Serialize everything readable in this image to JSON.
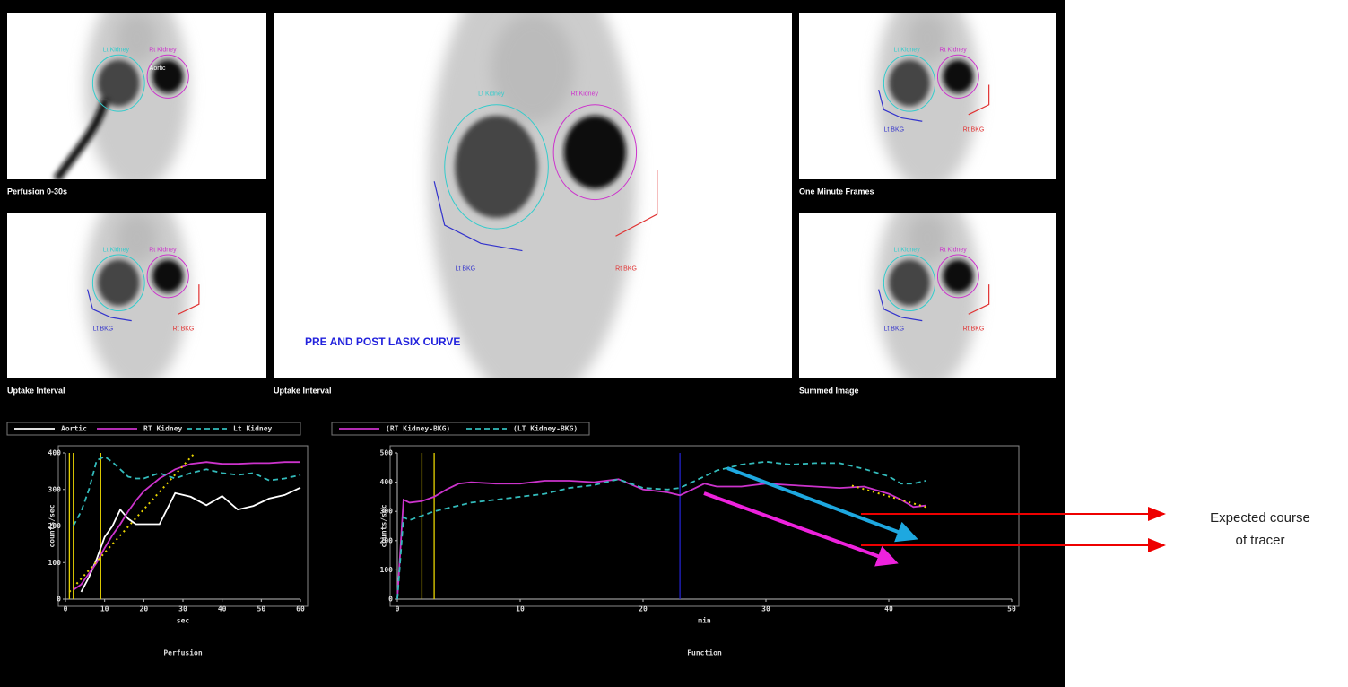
{
  "panels": [
    {
      "caption": "Perfusion 0-30s",
      "labels": [
        "Lt Kidney",
        "Rt Kidney",
        "Aortic"
      ]
    },
    {
      "caption": "Uptake Interval",
      "labels": [
        "Lt Kidney",
        "Rt Kidney",
        "Lt BKG",
        "Rt BKG"
      ],
      "overlay": "PRE AND POST LASIX CURVE"
    },
    {
      "caption": "One Minute Frames",
      "labels": [
        "Lt Kidney",
        "Rt Kidney",
        "Lt BKG",
        "Rt BKG"
      ]
    },
    {
      "caption": "Uptake Interval",
      "labels": [
        "Lt Kidney",
        "Rt Kidney",
        "Lt BKG",
        "Rt BKG"
      ]
    },
    {
      "caption": "Summed Image",
      "labels": [
        "Lt Kidney",
        "Rt Kidney",
        "Lt BKG",
        "Rt BKG"
      ]
    }
  ],
  "annotation": [
    "Expected course",
    "of tracer"
  ],
  "chart_data": [
    {
      "type": "line",
      "title": "Perfusion",
      "x_label": "sec",
      "y_label": "counts/sec",
      "x": [
        2,
        4,
        6,
        8,
        10,
        12,
        14,
        16,
        18,
        20,
        24,
        28,
        32,
        36,
        40,
        44,
        48,
        52,
        56,
        60
      ],
      "series": [
        {
          "name": "Aortic",
          "color": "#ffffff",
          "dashed": false,
          "values": [
            null,
            20,
            60,
            110,
            170,
            200,
            245,
            220,
            205,
            205,
            205,
            290,
            280,
            257,
            282,
            245,
            255,
            275,
            285,
            305
          ]
        },
        {
          "name": "RT Kidney",
          "color": "#cc33cc",
          "dashed": false,
          "values": [
            25,
            40,
            70,
            100,
            140,
            175,
            205,
            240,
            270,
            295,
            330,
            355,
            370,
            375,
            370,
            370,
            372,
            372,
            375,
            375
          ]
        },
        {
          "name": "Lt Kidney",
          "color": "#33bbbb",
          "dashed": true,
          "values": [
            200,
            240,
            300,
            380,
            390,
            375,
            355,
            335,
            330,
            330,
            345,
            330,
            345,
            355,
            345,
            340,
            345,
            325,
            330,
            340
          ]
        }
      ],
      "vlines": [
        {
          "value": 1,
          "color": "#e6d200"
        },
        {
          "value": 2,
          "color": "#e6d200"
        },
        {
          "value": 9,
          "color": "#e6d200"
        }
      ],
      "fit": {
        "color": "#e6d200",
        "x": [
          1,
          33
        ],
        "values": [
          20,
          400
        ]
      },
      "xlim": [
        0,
        60
      ],
      "xticks": [
        0,
        10,
        20,
        30,
        40,
        50,
        60
      ],
      "ylim": [
        0,
        400
      ],
      "yticks": [
        0,
        100,
        200,
        300,
        400
      ],
      "grid": false
    },
    {
      "type": "line",
      "title": "Function",
      "x_label": "min",
      "y_label": "counts/sec",
      "x": [
        0,
        0.5,
        1,
        2,
        3,
        4,
        5,
        6,
        8,
        10,
        12,
        14,
        16,
        18,
        20,
        22,
        23,
        24,
        25,
        26,
        28,
        30,
        32,
        34,
        36,
        38,
        40,
        41,
        42,
        43
      ],
      "series": [
        {
          "name": "(RT Kidney-BKG)",
          "color": "#cc33cc",
          "dashed": false,
          "values": [
            0,
            340,
            330,
            335,
            350,
            375,
            395,
            400,
            395,
            395,
            405,
            405,
            400,
            410,
            375,
            365,
            355,
            375,
            395,
            385,
            385,
            395,
            390,
            385,
            380,
            385,
            360,
            340,
            315,
            320
          ]
        },
        {
          "name": "(LT Kidney-BKG)",
          "color": "#33bbbb",
          "dashed": true,
          "values": [
            0,
            280,
            270,
            285,
            300,
            310,
            320,
            330,
            340,
            350,
            360,
            380,
            390,
            410,
            380,
            375,
            380,
            400,
            420,
            440,
            460,
            470,
            460,
            465,
            465,
            445,
            420,
            395,
            395,
            405
          ]
        }
      ],
      "vlines": [
        {
          "value": 2,
          "color": "#e6d200"
        },
        {
          "value": 3,
          "color": "#e6d200"
        },
        {
          "value": 23,
          "color": "#2222cc"
        }
      ],
      "fit": {
        "color": "#e6d200",
        "x": [
          37,
          43
        ],
        "values": [
          388,
          315
        ]
      },
      "xlim": [
        0,
        50
      ],
      "xticks": [
        0,
        10,
        20,
        30,
        40,
        50
      ],
      "ylim": [
        0,
        500
      ],
      "yticks": [
        0,
        100,
        200,
        300,
        400,
        500
      ],
      "grid": false
    }
  ]
}
